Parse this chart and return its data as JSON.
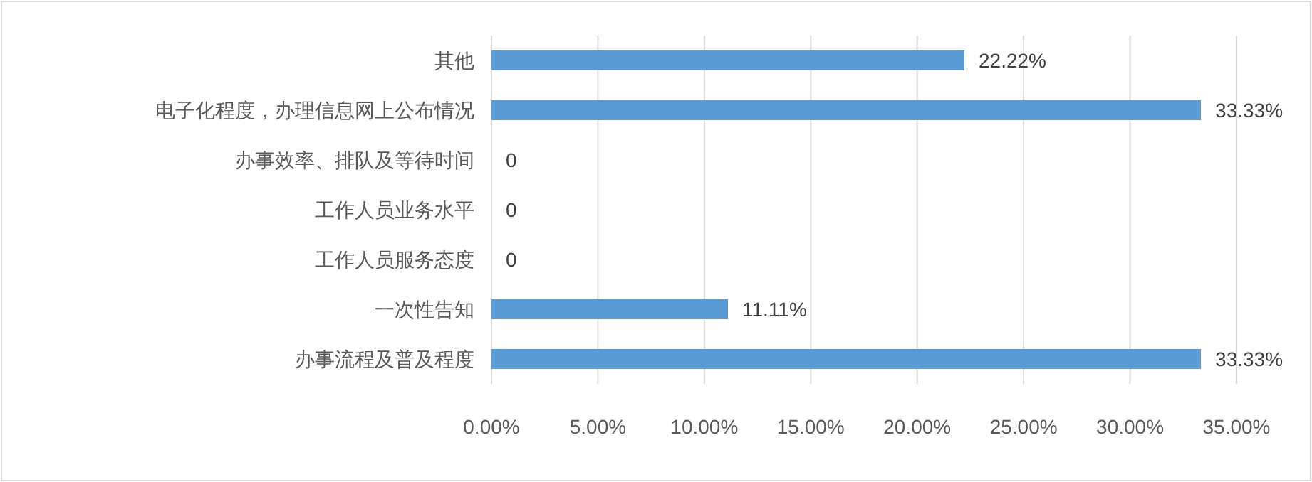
{
  "chart_data": {
    "type": "bar",
    "orientation": "horizontal",
    "categories": [
      "其他",
      "电子化程度，办理信息网上公布情况",
      "办事效率、排队及等待时间",
      "工作人员业务水平",
      "工作人员服务态度",
      "一次性告知",
      "办事流程及普及程度"
    ],
    "values": [
      22.22,
      33.33,
      0,
      0,
      0,
      11.11,
      33.33
    ],
    "value_labels": [
      "22.22%",
      "33.33%",
      "0",
      "0",
      "0",
      "11.11%",
      "33.33%"
    ],
    "color": "#5b9bd5",
    "xlim": [
      0,
      35
    ],
    "xticks": [
      {
        "value": 0,
        "label": "0.00%"
      },
      {
        "value": 5,
        "label": "5.00%"
      },
      {
        "value": 10,
        "label": "10.00%"
      },
      {
        "value": 15,
        "label": "15.00%"
      },
      {
        "value": 20,
        "label": "20.00%"
      },
      {
        "value": 25,
        "label": "25.00%"
      },
      {
        "value": 30,
        "label": "30.00%"
      },
      {
        "value": 35,
        "label": "35.00%"
      }
    ],
    "grid": "x"
  }
}
